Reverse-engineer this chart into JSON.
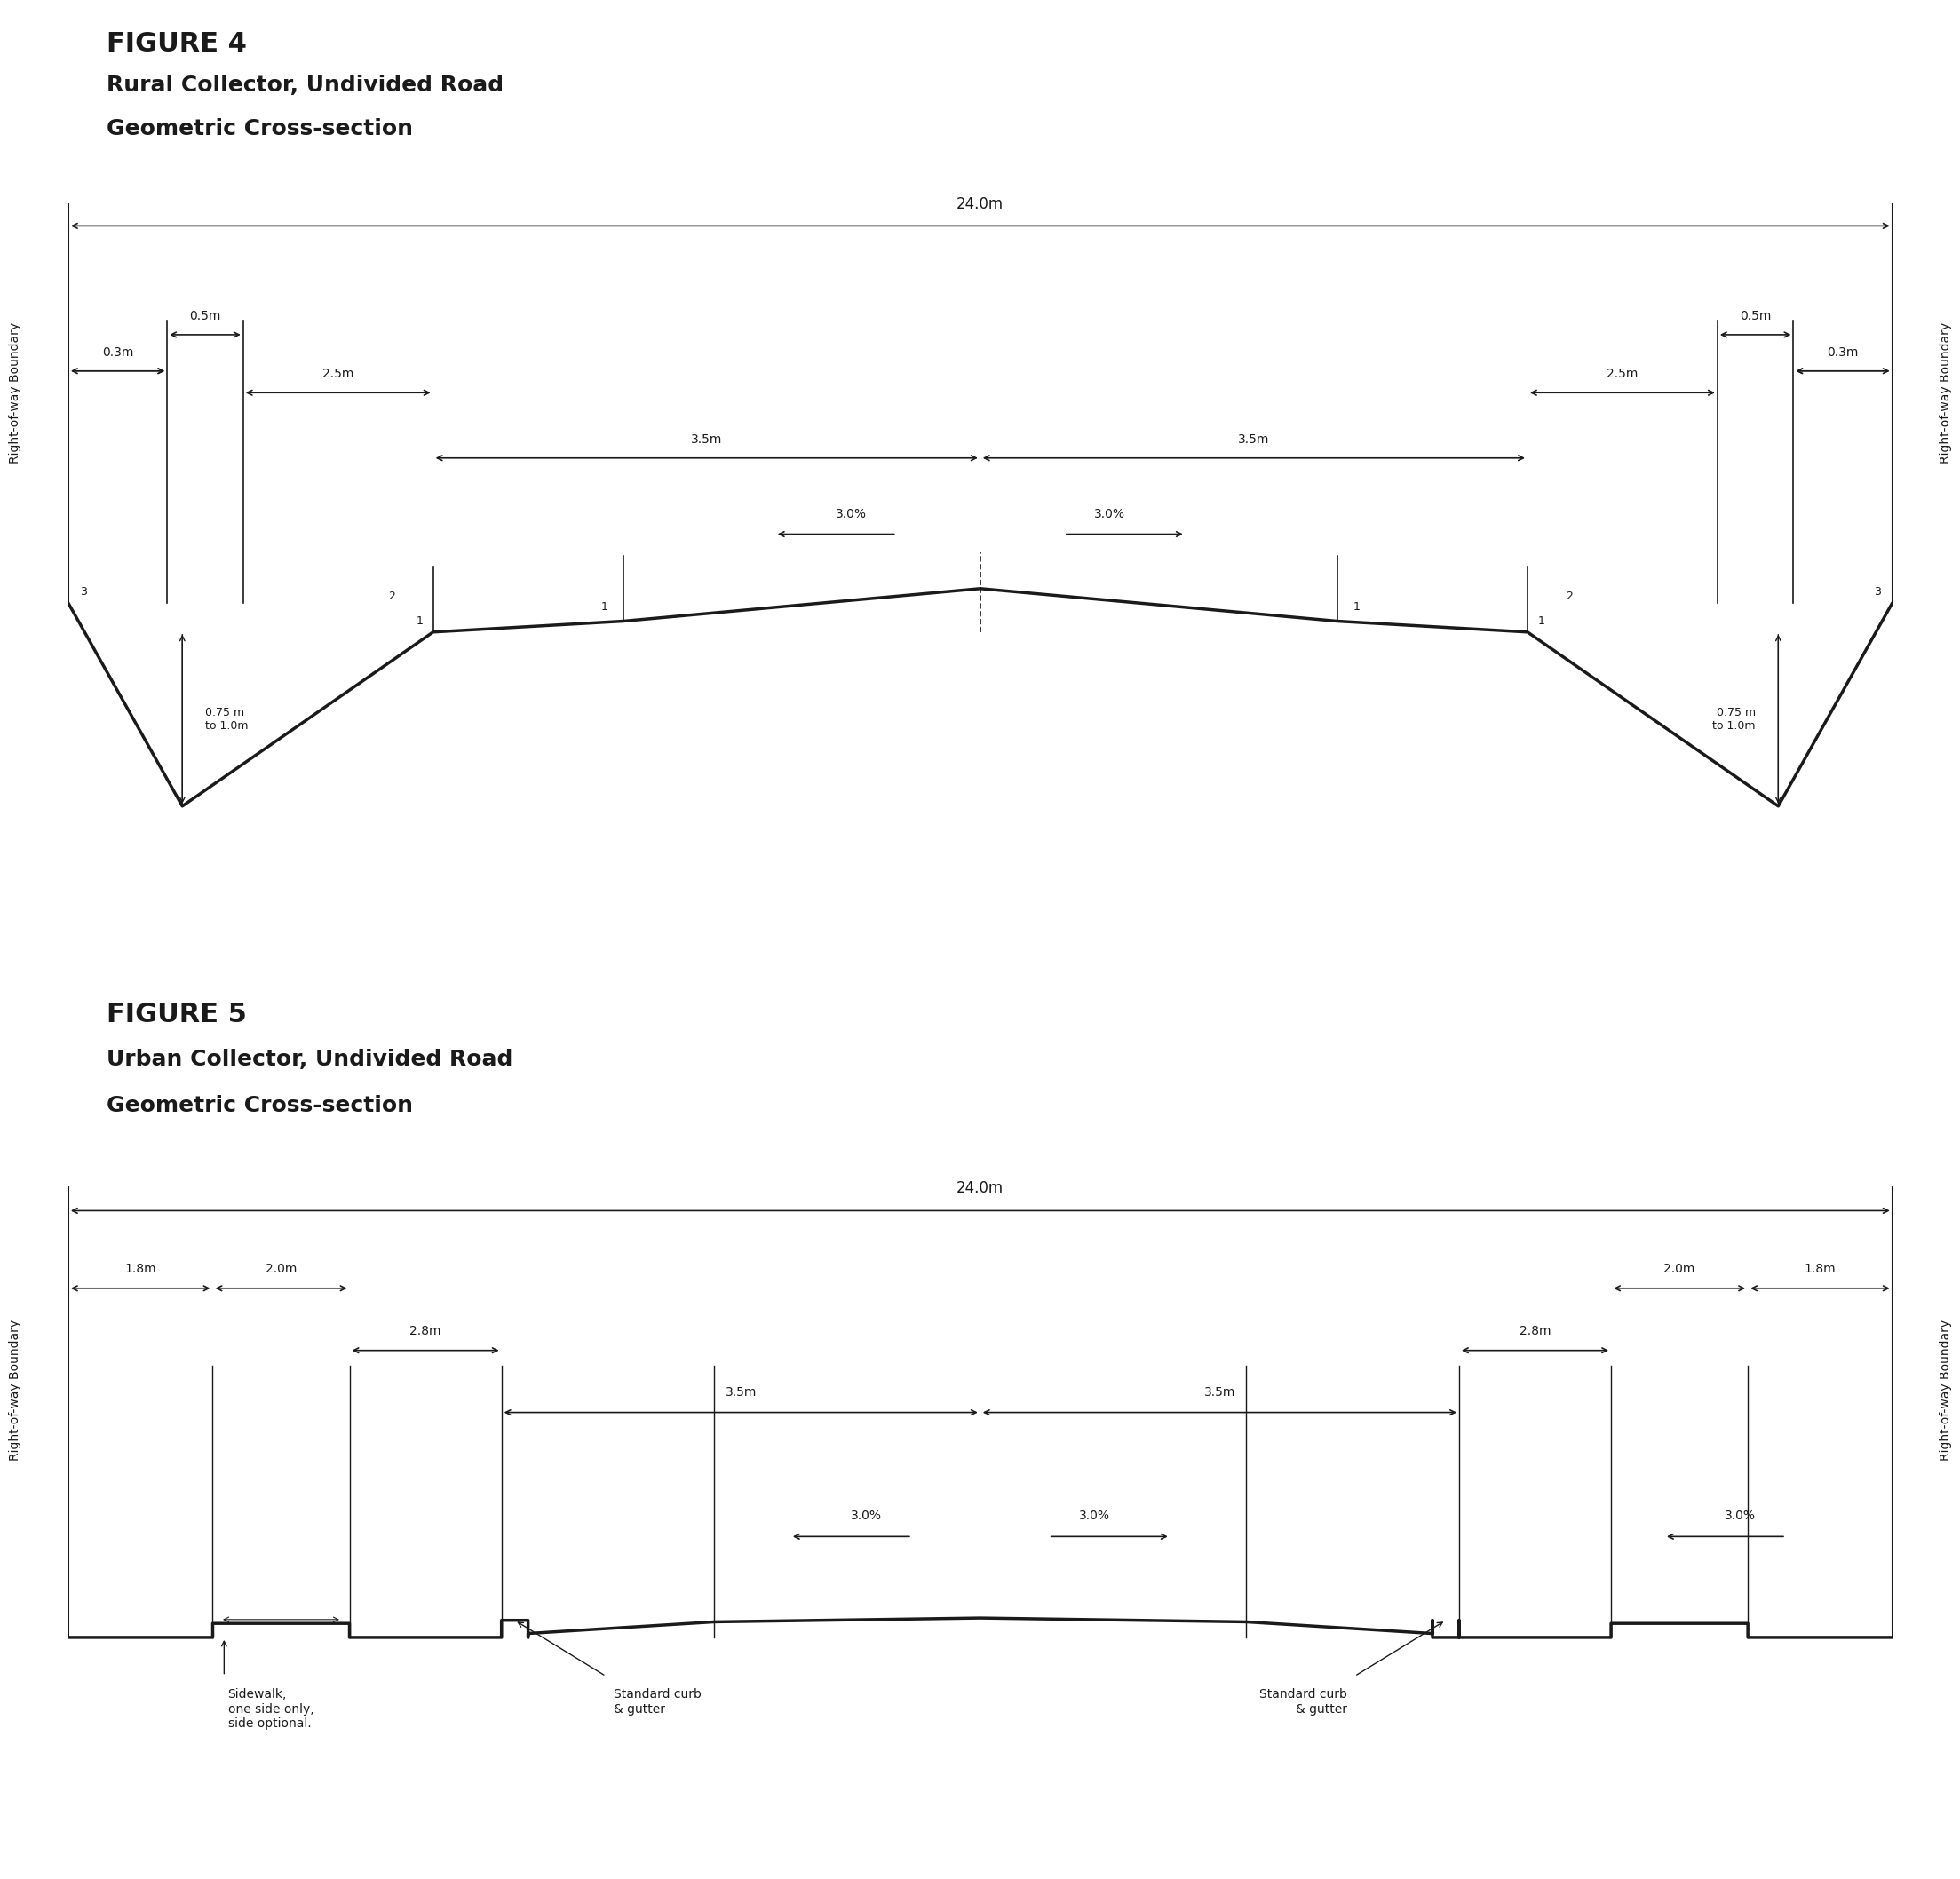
{
  "fig4_title": "FIGURE 4",
  "fig4_subtitle1": "Rural Collector, Undivided Road",
  "fig4_subtitle2": "Geometric Cross-section",
  "fig5_title": "FIGURE 5",
  "fig5_subtitle1": "Urban Collector, Undivided Road",
  "fig5_subtitle2": "Geometric Cross-section",
  "row_label": "Right-of-way Boundary",
  "total_width_label": "24.0m",
  "fig4_labels": {
    "dim_03m_left": "0.3m",
    "dim_05m_left": "0.5m",
    "dim_25m_left": "2.5m",
    "dim_35m_left": "3.5m",
    "dim_35m_right": "3.5m",
    "dim_25m_right": "2.5m",
    "dim_05m_right": "0.5m",
    "dim_03m_right": "0.3m",
    "slope_left": "3.0%",
    "slope_right": "3.0%",
    "ditch_left": "0.75 m\nto 1.0m",
    "ditch_right": "0.75 m\nto 1.0m"
  },
  "fig5_labels": {
    "dim_18m_left": "1.8m",
    "dim_20m_left": "2.0m",
    "dim_28m_left": "2.8m",
    "dim_35m_left": "3.5m",
    "dim_35m_right": "3.5m",
    "dim_28m_right": "2.8m",
    "dim_20m_right": "2.0m",
    "dim_18m_right": "1.8m",
    "slope_left": "3.0%",
    "slope_center": "3.0%",
    "slope_right": "3.0%",
    "sidewalk_label": "Sidewalk,\none side only,\nside optional.",
    "curb_left": "Standard curb\n& gutter",
    "curb_right": "Standard curb\n& gutter"
  },
  "line_color": "#1a1a1a",
  "text_color": "#1a1a1a",
  "background_color": "#ffffff"
}
